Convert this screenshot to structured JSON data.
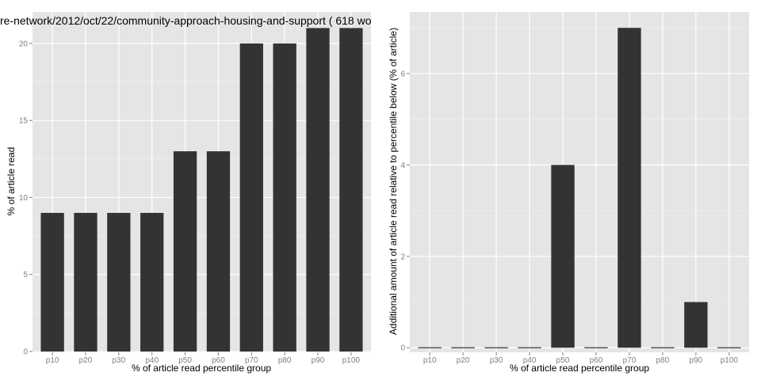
{
  "chart_data": [
    {
      "type": "bar",
      "title": "re-network/2012/oct/22/community-approach-housing-and-support ( 618 wo",
      "xlabel": "% of article read percentile group",
      "ylabel": "% of article read",
      "categories": [
        "p10",
        "p20",
        "p30",
        "p40",
        "p50",
        "p60",
        "p70",
        "p80",
        "p90",
        "p100"
      ],
      "values": [
        9,
        9,
        9,
        9,
        13,
        13,
        20,
        20,
        21,
        21
      ],
      "ylim": [
        -0.05,
        22.05
      ],
      "yticks": [
        0,
        5,
        10,
        15,
        20
      ],
      "grid": true
    },
    {
      "type": "bar",
      "title": "",
      "xlabel": "% of article read percentile group",
      "ylabel": "Additional amount of article read relative to percentile below (% of article)",
      "categories": [
        "p10",
        "p20",
        "p30",
        "p40",
        "p50",
        "p60",
        "p70",
        "p80",
        "p90",
        "p100"
      ],
      "values": [
        0,
        0,
        0,
        0,
        4,
        0,
        7,
        0,
        1,
        0
      ],
      "ylim": [
        -0.1,
        7.35
      ],
      "yticks": [
        0,
        2,
        4,
        6
      ],
      "grid": true
    }
  ],
  "colors": {
    "panel_background": "#e5e5e5",
    "bar_fill": "#333333",
    "grid_line": "#ffffff",
    "tick_text": "#7f7f7f"
  }
}
